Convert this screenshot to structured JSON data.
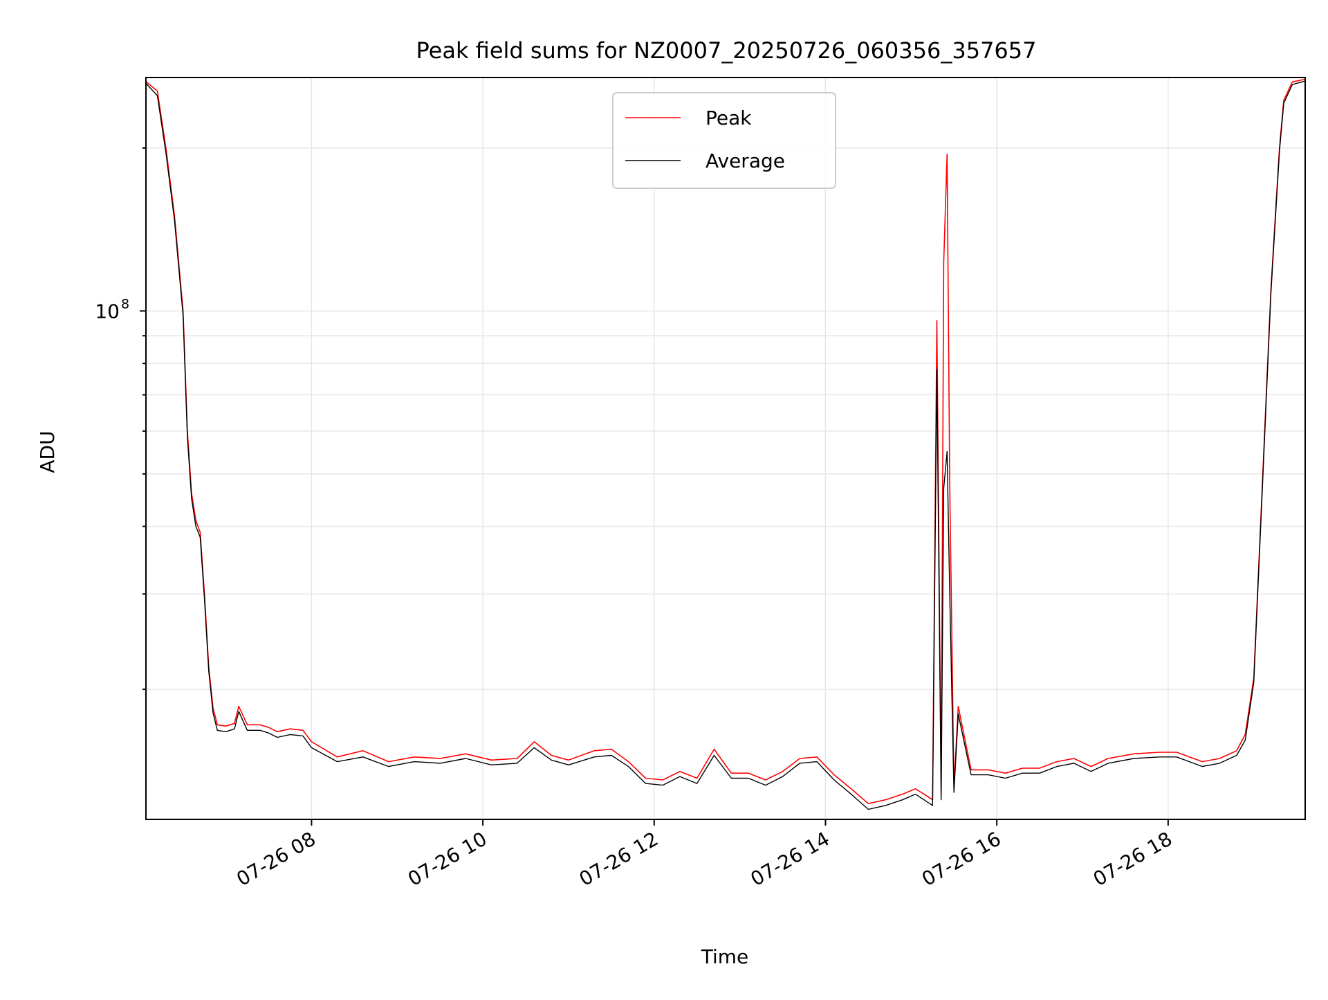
{
  "chart_data": {
    "type": "line",
    "title": "Peak field sums for NZ0007_20250726_060356_357657",
    "xlabel": "Time",
    "ylabel": "ADU",
    "y_scale": "log",
    "x_range": [
      "07-26 06:04",
      "07-26 19:36"
    ],
    "ylim": [
      11500000,
      270000000
    ],
    "x_tick_labels": [
      "07-26 08",
      "07-26 10",
      "07-26 12",
      "07-26 14",
      "07-26 16",
      "07-26 18"
    ],
    "x_tick_hours": [
      8,
      10,
      12,
      14,
      16,
      18
    ],
    "y_tick_label_base": "10",
    "y_tick_label_exp": "8",
    "y_major_ticks": [
      100000000
    ],
    "y_minor_ticks": [
      20000000,
      30000000,
      40000000,
      50000000,
      60000000,
      70000000,
      80000000,
      90000000,
      200000000
    ],
    "grid": true,
    "legend_position": "top-center",
    "x_hours": [
      6.07,
      6.2,
      6.3,
      6.4,
      6.5,
      6.55,
      6.6,
      6.65,
      6.7,
      6.75,
      6.8,
      6.85,
      6.9,
      7.0,
      7.1,
      7.15,
      7.25,
      7.4,
      7.5,
      7.6,
      7.75,
      7.9,
      8.0,
      8.3,
      8.6,
      8.9,
      9.2,
      9.5,
      9.8,
      10.1,
      10.4,
      10.6,
      10.8,
      11.0,
      11.3,
      11.5,
      11.7,
      11.9,
      12.1,
      12.3,
      12.5,
      12.7,
      12.9,
      13.1,
      13.3,
      13.5,
      13.7,
      13.9,
      14.1,
      14.3,
      14.5,
      14.7,
      14.9,
      15.05,
      15.15,
      15.25,
      15.3,
      15.35,
      15.38,
      15.42,
      15.45,
      15.5,
      15.55,
      15.7,
      15.9,
      16.1,
      16.3,
      16.5,
      16.7,
      16.9,
      17.1,
      17.3,
      17.6,
      17.9,
      18.1,
      18.4,
      18.6,
      18.8,
      18.9,
      19.0,
      19.1,
      19.2,
      19.3,
      19.35,
      19.45,
      19.6
    ],
    "series": [
      {
        "name": "Peak",
        "color": "#ff0000",
        "values": [
          265000000,
          255000000,
          200000000,
          150000000,
          100000000,
          60000000,
          46000000,
          41000000,
          39000000,
          30000000,
          22000000,
          18500000,
          17200000,
          17100000,
          17300000,
          18600000,
          17200000,
          17200000,
          17000000,
          16700000,
          16900000,
          16800000,
          16000000,
          15000000,
          15400000,
          14700000,
          15000000,
          14900000,
          15200000,
          14800000,
          14900000,
          16000000,
          15100000,
          14800000,
          15400000,
          15500000,
          14700000,
          13700000,
          13600000,
          14100000,
          13700000,
          15500000,
          14000000,
          14000000,
          13600000,
          14100000,
          14900000,
          15000000,
          13900000,
          13100000,
          12300000,
          12500000,
          12800000,
          13100000,
          12800000,
          12500000,
          96000000,
          12800000,
          123000000,
          195000000,
          48000000,
          13200000,
          18600000,
          14200000,
          14200000,
          14000000,
          14300000,
          14300000,
          14700000,
          14900000,
          14400000,
          14900000,
          15200000,
          15300000,
          15300000,
          14700000,
          14900000,
          15400000,
          16500000,
          21000000,
          48000000,
          110000000,
          200000000,
          245000000,
          265000000,
          268000000
        ]
      },
      {
        "name": "Average",
        "color": "#000000",
        "values": [
          263000000,
          250000000,
          196000000,
          147000000,
          98000000,
          58500000,
          45000000,
          40000000,
          38200000,
          29400000,
          21600000,
          18100000,
          16800000,
          16700000,
          16900000,
          18200000,
          16800000,
          16800000,
          16600000,
          16300000,
          16500000,
          16400000,
          15600000,
          14700000,
          15000000,
          14400000,
          14700000,
          14600000,
          14900000,
          14500000,
          14600000,
          15600000,
          14800000,
          14500000,
          15000000,
          15100000,
          14400000,
          13400000,
          13300000,
          13800000,
          13400000,
          15100000,
          13700000,
          13700000,
          13300000,
          13800000,
          14600000,
          14700000,
          13600000,
          12800000,
          12000000,
          12200000,
          12500000,
          12800000,
          12500000,
          12200000,
          78000000,
          12500000,
          47000000,
          55000000,
          30000000,
          12900000,
          18000000,
          13900000,
          13900000,
          13700000,
          14000000,
          14000000,
          14400000,
          14600000,
          14100000,
          14600000,
          14900000,
          15000000,
          15000000,
          14400000,
          14600000,
          15100000,
          16100000,
          20600000,
          47000000,
          108000000,
          197000000,
          242000000,
          262000000,
          266000000
        ]
      }
    ]
  }
}
